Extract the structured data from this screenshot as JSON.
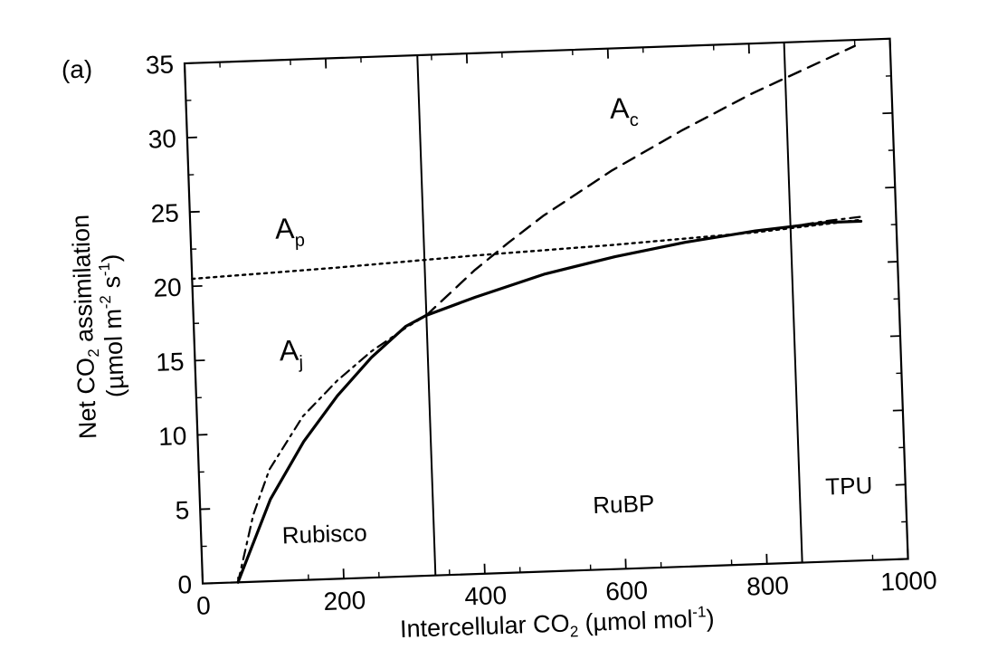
{
  "panel_label": "(a)",
  "chart_data": {
    "type": "line",
    "xlabel": {
      "main": "Intercellular CO",
      "sub": "2",
      "unit": " (µmol mol",
      "sup": "-1",
      "close": ")"
    },
    "ylabel": {
      "line1": {
        "main": "Net CO",
        "sub": "2",
        "rest": " assimilation"
      },
      "line2": {
        "main": "(µmol m",
        "sup1": "-2",
        "mid": " s",
        "sup2": "-1",
        "close": ")"
      }
    },
    "xlim": [
      0,
      1000
    ],
    "ylim": [
      0,
      35
    ],
    "x_ticks": [
      0,
      200,
      400,
      600,
      800,
      1000
    ],
    "y_ticks": [
      0,
      5,
      10,
      15,
      20,
      25,
      30,
      35
    ],
    "x_tick_labels": [
      "0",
      "200",
      "400",
      "600",
      "800",
      "1000"
    ],
    "y_tick_labels": [
      "0",
      "5",
      "10",
      "15",
      "20",
      "25",
      "30",
      "35"
    ],
    "grid": false,
    "legend": "none",
    "series": [
      {
        "label": {
          "main": "A",
          "sub": "c"
        },
        "style": "dashed",
        "x": [
          50,
          100,
          150,
          200,
          250,
          300,
          330,
          400,
          450,
          500,
          600,
          700,
          800,
          850,
          900,
          950
        ],
        "y": [
          0,
          5.5,
          9.3,
          12.3,
          14.8,
          16.8,
          17.5,
          20.4,
          22.2,
          23.9,
          26.8,
          29.3,
          31.6,
          32.6,
          33.6,
          34.6
        ]
      },
      {
        "label": {
          "main": "A",
          "sub": "j"
        },
        "style": "dash-dot",
        "x": [
          50,
          75,
          100,
          150,
          200,
          250,
          300,
          330,
          400,
          500,
          600,
          700,
          800,
          850,
          900,
          950
        ],
        "y": [
          0,
          4.5,
          7.5,
          11.0,
          13.3,
          15.2,
          16.7,
          17.5,
          18.6,
          20.0,
          21.0,
          21.8,
          22.4,
          22.6,
          22.9,
          23.1
        ]
      },
      {
        "label": {
          "main": "A",
          "sub": "p"
        },
        "style": "dotted",
        "x": [
          0,
          200,
          400,
          600,
          800,
          950
        ],
        "y": [
          20.5,
          20.9,
          21.4,
          21.8,
          22.3,
          22.9
        ]
      },
      {
        "label": {
          "main": "",
          "sub": ""
        },
        "style": "solid",
        "x": [
          50,
          100,
          150,
          200,
          250,
          300,
          330,
          400,
          500,
          600,
          700,
          800,
          850,
          900,
          950
        ],
        "y": [
          0,
          5.5,
          9.3,
          12.3,
          14.8,
          16.8,
          17.5,
          18.6,
          20.0,
          21.0,
          21.8,
          22.4,
          22.6,
          22.8,
          22.8
        ]
      }
    ],
    "dividers": [
      330,
      850
    ],
    "regions": [
      {
        "label": "Rubisco",
        "x": 175,
        "y": 2.5
      },
      {
        "label": "RuBP",
        "x": 600,
        "y": 3.8
      },
      {
        "label": "TPU",
        "x": 920,
        "y": 4.5
      }
    ],
    "curve_label_positions": [
      {
        "x": 600,
        "y": 30.3
      },
      {
        "x": 120,
        "y": 14.8
      },
      {
        "x": 120,
        "y": 23.0
      }
    ]
  }
}
